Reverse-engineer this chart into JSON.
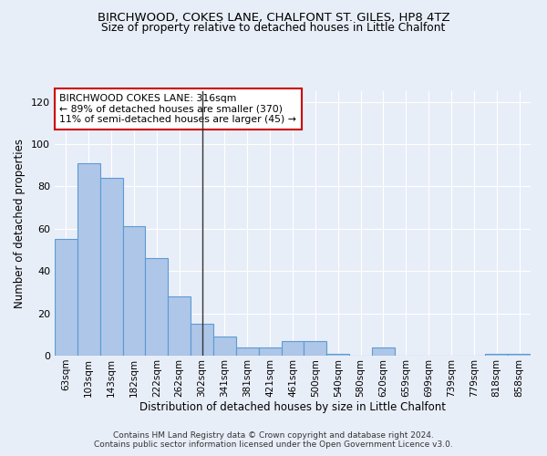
{
  "title1": "BIRCHWOOD, COKES LANE, CHALFONT ST. GILES, HP8 4TZ",
  "title2": "Size of property relative to detached houses in Little Chalfont",
  "xlabel": "Distribution of detached houses by size in Little Chalfont",
  "ylabel": "Number of detached properties",
  "footer1": "Contains HM Land Registry data © Crown copyright and database right 2024.",
  "footer2": "Contains public sector information licensed under the Open Government Licence v3.0.",
  "annotation_title": "BIRCHWOOD COKES LANE: 316sqm",
  "annotation_line1": "← 89% of detached houses are smaller (370)",
  "annotation_line2": "11% of semi-detached houses are larger (45) →",
  "bar_labels": [
    "63sqm",
    "103sqm",
    "143sqm",
    "182sqm",
    "222sqm",
    "262sqm",
    "302sqm",
    "341sqm",
    "381sqm",
    "421sqm",
    "461sqm",
    "500sqm",
    "540sqm",
    "580sqm",
    "620sqm",
    "659sqm",
    "699sqm",
    "739sqm",
    "779sqm",
    "818sqm",
    "858sqm"
  ],
  "bar_values": [
    55,
    91,
    84,
    61,
    46,
    28,
    15,
    9,
    4,
    4,
    7,
    7,
    1,
    0,
    4,
    0,
    0,
    0,
    0,
    1,
    1
  ],
  "bar_color": "#aec6e8",
  "bar_edge_color": "#5b9bd5",
  "highlight_bar_index": 6,
  "highlight_line_color": "#333333",
  "ylim": [
    0,
    125
  ],
  "yticks": [
    0,
    20,
    40,
    60,
    80,
    100,
    120
  ],
  "bg_color": "#e8eef8",
  "grid_color": "#ffffff",
  "annotation_box_color": "#ffffff",
  "annotation_box_edge": "#cc0000"
}
